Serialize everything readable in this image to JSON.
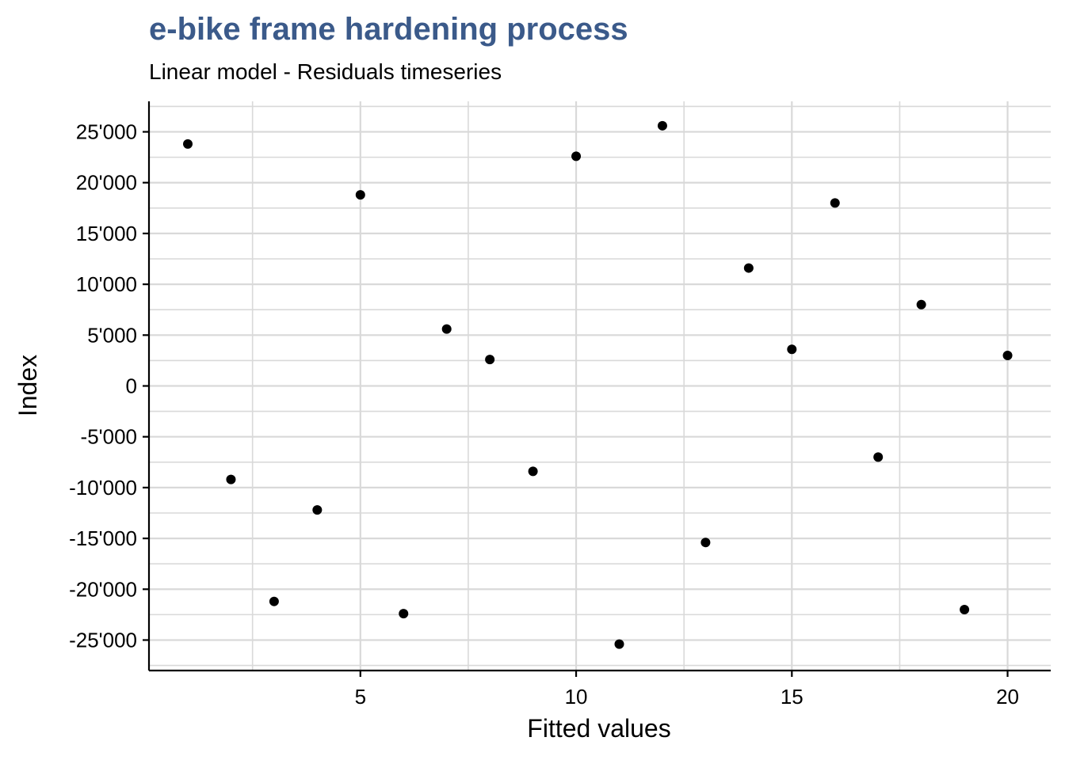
{
  "chart_data": {
    "type": "scatter",
    "title": "e-bike frame hardening process",
    "subtitle": "Linear model - Residuals timeseries",
    "xlabel": "Fitted values",
    "ylabel": "Index",
    "xlim": [
      0.1,
      21.0
    ],
    "ylim": [
      -28000,
      28000
    ],
    "x_ticks": [
      5,
      10,
      15,
      20
    ],
    "y_ticks": [
      -25000,
      -20000,
      -15000,
      -10000,
      -5000,
      0,
      5000,
      10000,
      15000,
      20000,
      25000
    ],
    "y_tick_labels": [
      "-25'000",
      "-20'000",
      "-15'000",
      "-10'000",
      "-5'000",
      "0",
      "5'000",
      "10'000",
      "15'000",
      "20'000",
      "25'000"
    ],
    "grid": true,
    "title_color": "#3b5a8a",
    "point_color": "#000000",
    "x": [
      1,
      2,
      3,
      4,
      5,
      6,
      7,
      8,
      9,
      10,
      11,
      12,
      13,
      14,
      15,
      16,
      17,
      18,
      19,
      20
    ],
    "y": [
      23800,
      -9200,
      -21200,
      -12200,
      18800,
      -22400,
      5600,
      2600,
      -8400,
      22600,
      -25400,
      25600,
      -15400,
      11600,
      3600,
      18000,
      -7000,
      8000,
      -22000,
      3000
    ]
  }
}
